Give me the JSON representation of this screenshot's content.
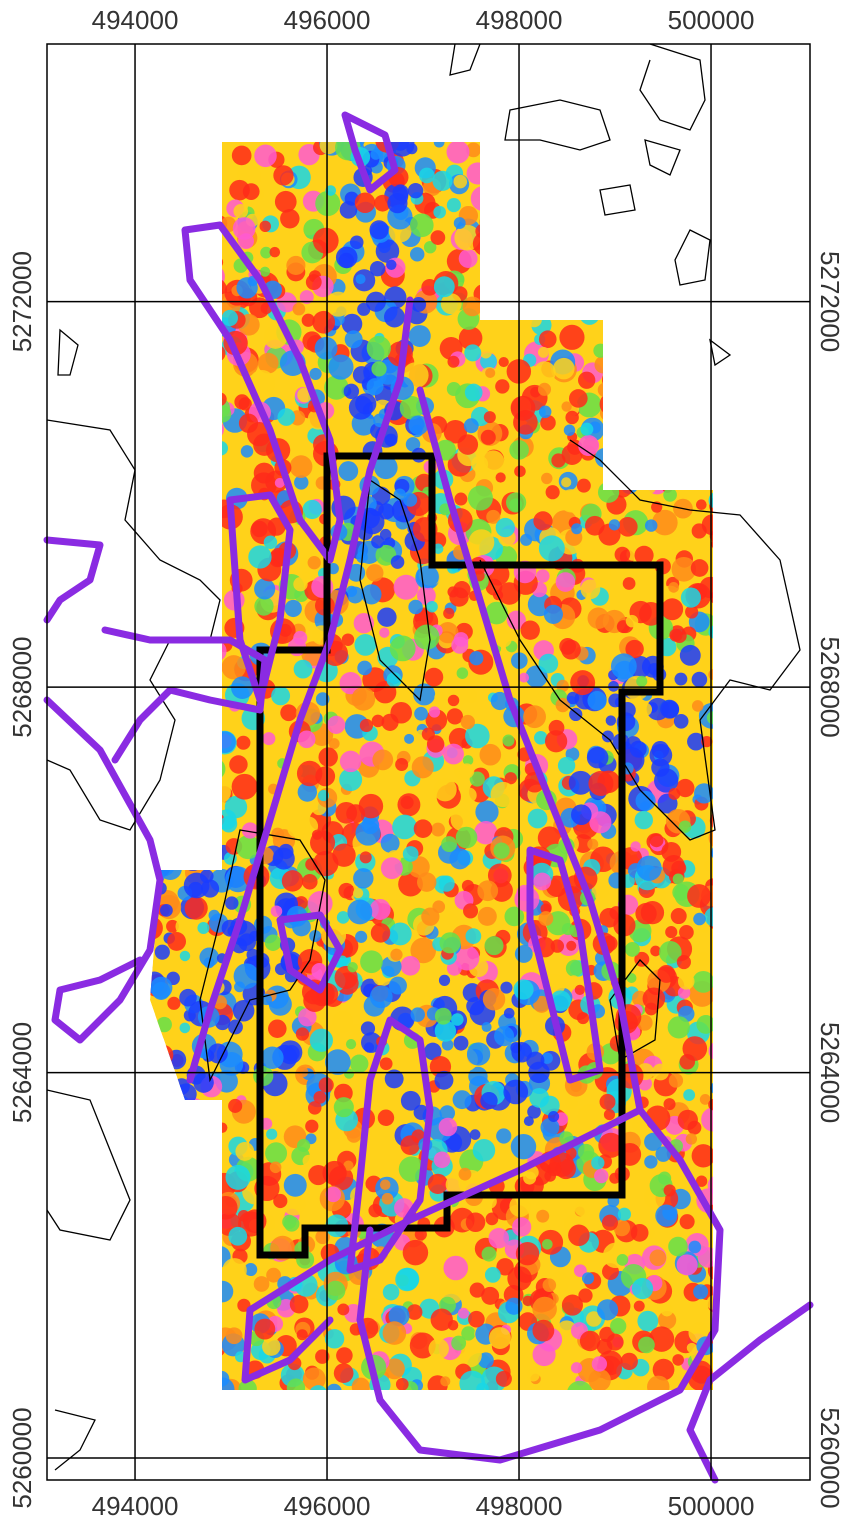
{
  "map": {
    "xlim": [
      493083,
      501031
    ],
    "ylim": [
      5259772,
      5274674
    ],
    "xticks": [
      494000,
      496000,
      498000,
      500000
    ],
    "yticks": [
      5260000,
      5264000,
      5268000,
      5272000
    ]
  }
}
